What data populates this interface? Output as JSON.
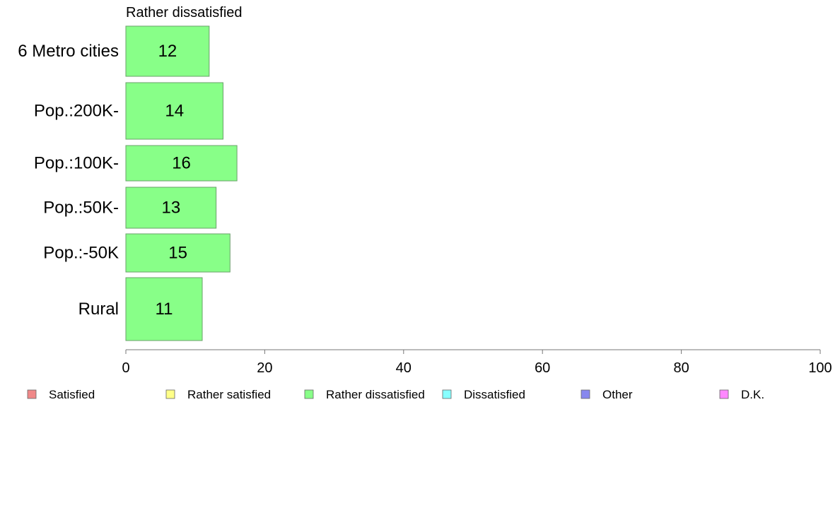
{
  "chart_data": {
    "type": "bar",
    "orientation": "horizontal",
    "title": "Rather dissatisfied",
    "categories": [
      "6 Metro cities",
      "Pop.:200K-",
      "Pop.:100K-",
      "Pop.:50K-",
      "Pop.:-50K",
      "Rural"
    ],
    "values": [
      12,
      14,
      16,
      13,
      15,
      11
    ],
    "series_color": "#88ff88",
    "xlim": [
      0,
      100
    ],
    "xticks": [
      0,
      20,
      40,
      60,
      80,
      100
    ],
    "grid": false,
    "legend_position": "bottom",
    "legend": [
      {
        "label": "Satisfied",
        "color": "#f08888"
      },
      {
        "label": "Rather satisfied",
        "color": "#ffff88"
      },
      {
        "label": "Rather dissatisfied",
        "color": "#88ff88"
      },
      {
        "label": "Dissatisfied",
        "color": "#88ffff"
      },
      {
        "label": "Other",
        "color": "#8888ee"
      },
      {
        "label": "D.K.",
        "color": "#ff88ff"
      }
    ]
  }
}
